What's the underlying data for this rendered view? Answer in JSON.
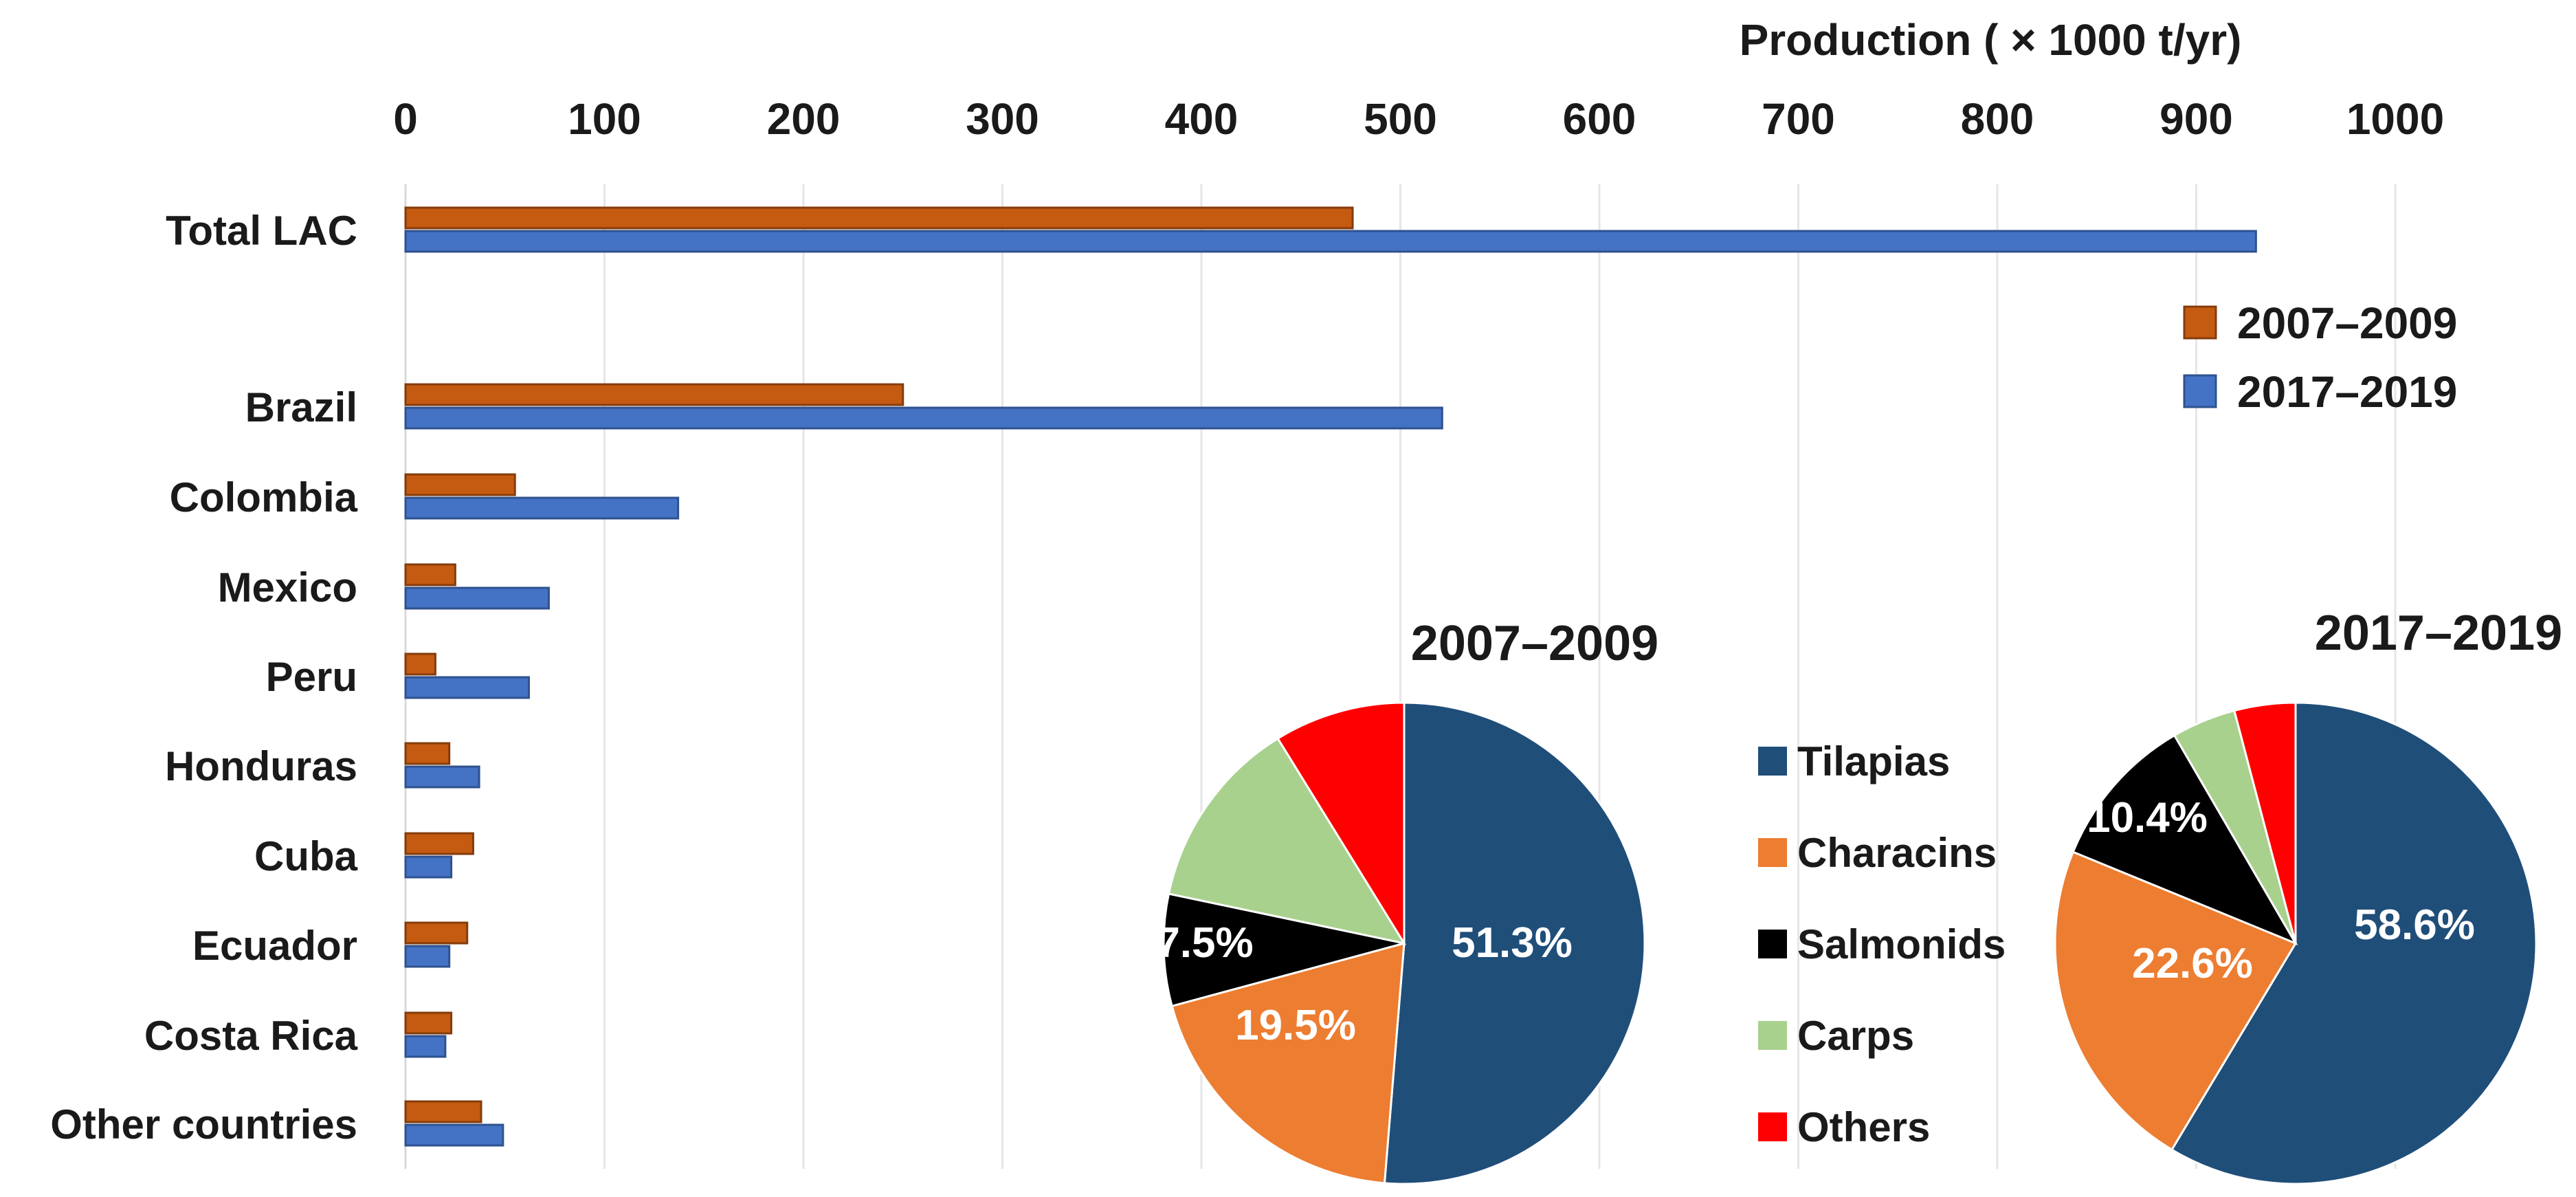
{
  "colors": {
    "series_2007_2009": "#C55A11",
    "series_2017_2019": "#4472C4",
    "bar_stroke_2007": "#843C0C",
    "bar_stroke_2017": "#2F528F",
    "tilapias": "#1F4E79",
    "characins": "#ED7D31",
    "salmonids": "#000000",
    "carps": "#A9D18E",
    "others": "#FF0000",
    "grid": "#E6E6E6",
    "text": "#1A1A1A"
  },
  "chart_data": [
    {
      "type": "bar",
      "orientation": "horizontal",
      "title": "",
      "xlabel": "Production ( × 1000 t/yr)",
      "ylabel": "",
      "xlim": [
        0,
        1000
      ],
      "x_ticks": [
        "0",
        "100",
        "200",
        "300",
        "400",
        "500",
        "600",
        "700",
        "800",
        "900",
        "1000"
      ],
      "categories": [
        "Total LAC",
        "Brazil",
        "Colombia",
        "Mexico",
        "Peru",
        "Honduras",
        "Cuba",
        "Ecuador",
        "Costa Rica",
        "Other countries"
      ],
      "series": [
        {
          "name": "2007–2009",
          "values": [
            476,
            250,
            55,
            25,
            15,
            22,
            34,
            31,
            23,
            38
          ]
        },
        {
          "name": "2017–2019",
          "values": [
            930,
            521,
            137,
            72,
            62,
            37,
            23,
            22,
            20,
            49
          ]
        }
      ],
      "grid": true,
      "legend_position": "right"
    },
    {
      "type": "pie",
      "title": "2007–2009",
      "labels": [
        "Tilapias",
        "Characins",
        "Salmonids",
        "Carps",
        "Others"
      ],
      "values": [
        51.3,
        19.5,
        7.5,
        12.9,
        8.8
      ],
      "value_labels": [
        "51.3%",
        "19.5%",
        "7.5%",
        "",
        ""
      ]
    },
    {
      "type": "pie",
      "title": "2017–2019",
      "labels": [
        "Tilapias",
        "Characins",
        "Salmonids",
        "Carps",
        "Others"
      ],
      "values": [
        58.6,
        22.6,
        10.4,
        4.3,
        4.1
      ],
      "value_labels": [
        "58.6%",
        "22.6%",
        "10.4%",
        "",
        ""
      ]
    }
  ],
  "pie_legend": [
    "Tilapias",
    "Characins",
    "Salmonids",
    "Carps",
    "Others"
  ]
}
